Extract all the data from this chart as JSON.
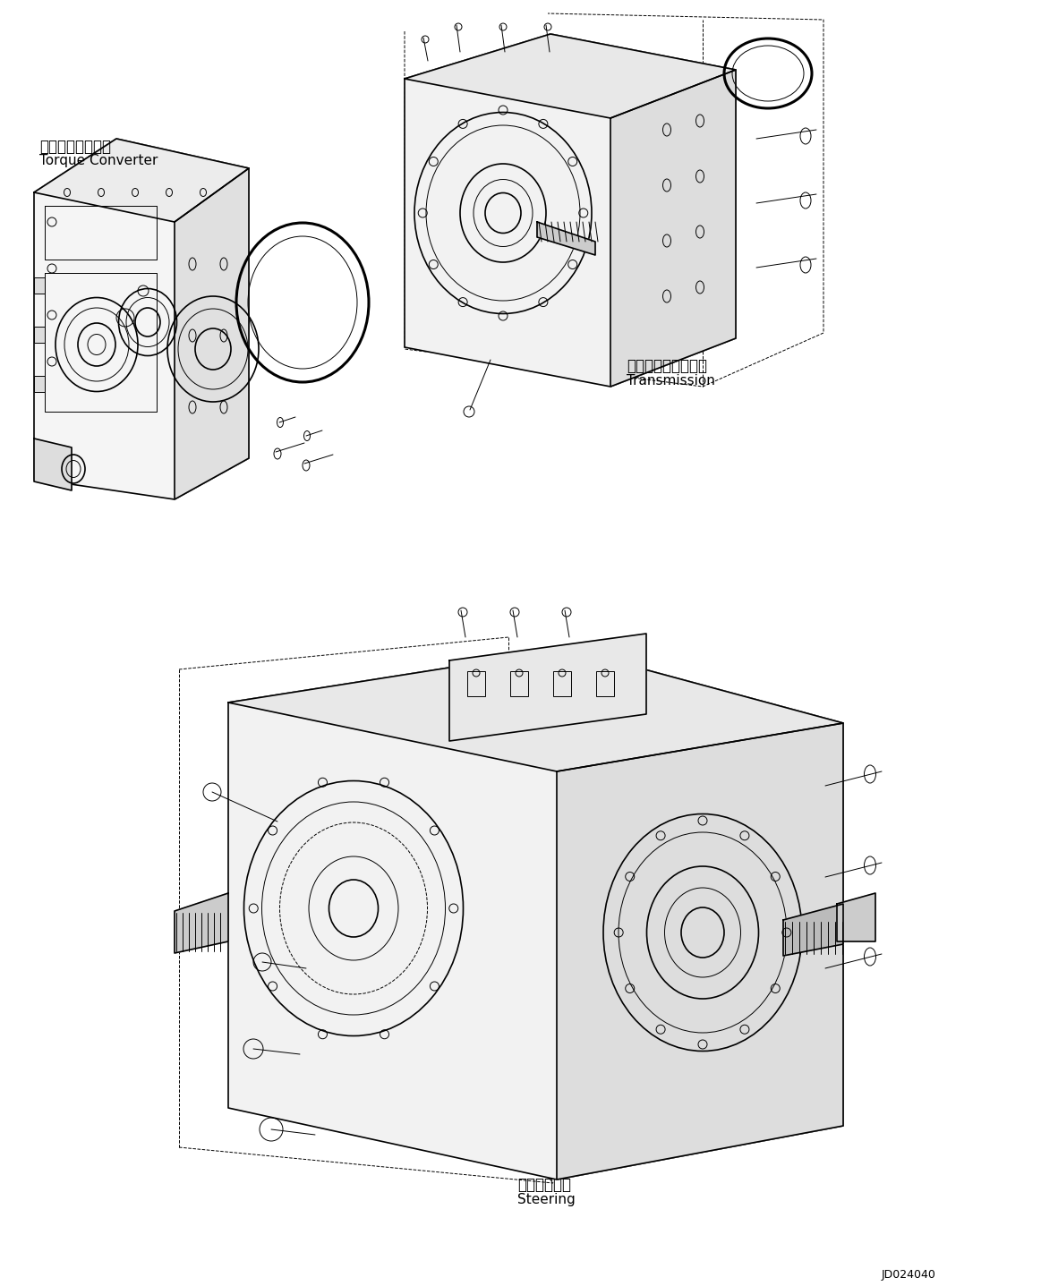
{
  "bg_color": "#ffffff",
  "line_color": "#000000",
  "fig_width": 11.63,
  "fig_height": 14.37,
  "dpi": 100,
  "label_torque_jp": "トルクコンバータ",
  "label_torque_en": "Torque Converter",
  "label_trans_jp": "トランスミッション",
  "label_trans_en": "Transmission",
  "label_steering_jp": "ステアリング",
  "label_steering_en": "Steering",
  "part_number": "JD024040"
}
